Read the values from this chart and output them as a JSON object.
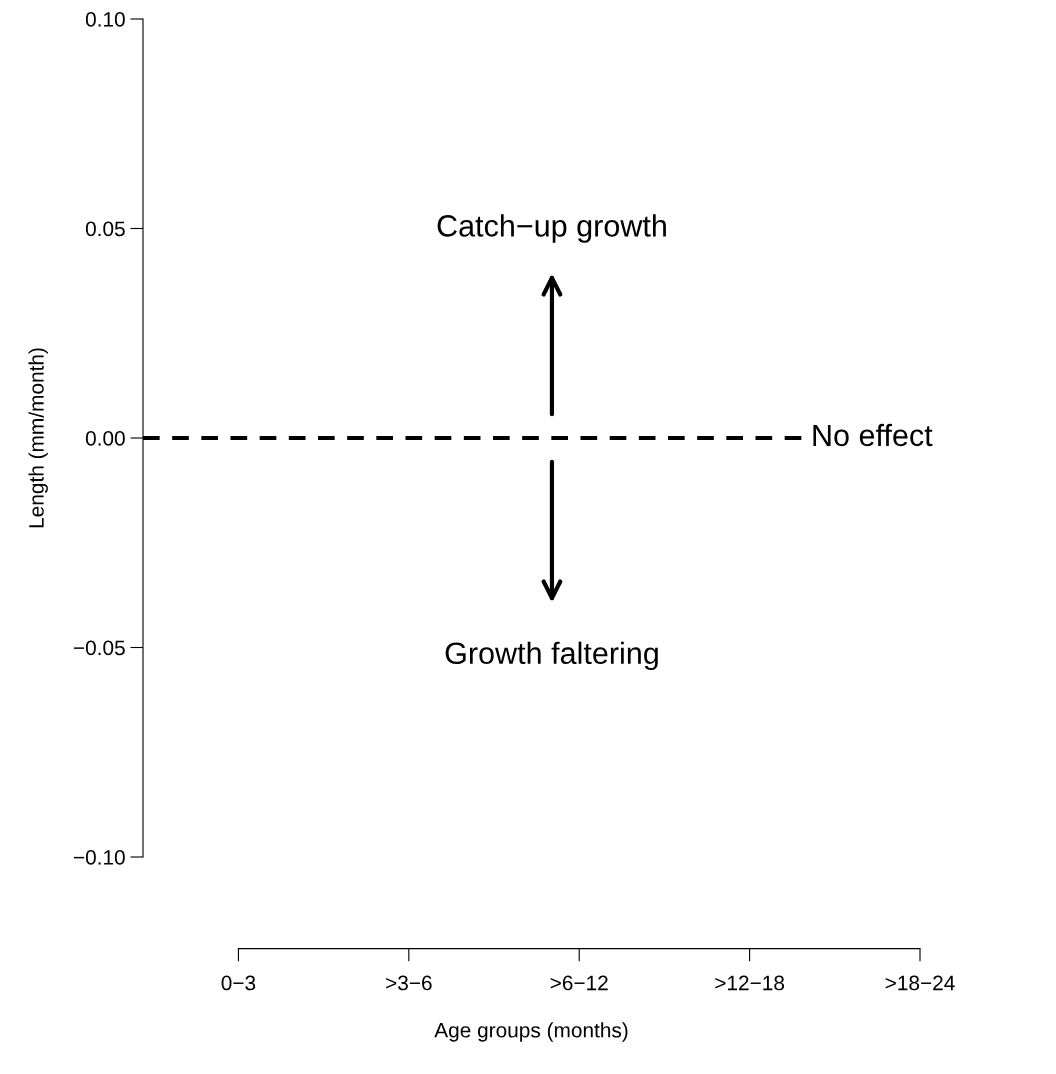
{
  "chart_data": {
    "type": "line",
    "values": [
      null,
      null,
      null,
      null,
      null
    ],
    "xlabel": "Age groups (months)",
    "ylabel": "Length (mm/month)",
    "categories": [
      "0−3",
      ">3−6",
      ">6−12",
      ">12−18",
      ">18−24"
    ],
    "ylim": [
      -0.1,
      0.1
    ],
    "yticks": [
      {
        "value": -0.1,
        "label": "−0.10"
      },
      {
        "value": -0.05,
        "label": "−0.05"
      },
      {
        "value": 0,
        "label": "0.00"
      },
      {
        "value": 0.05,
        "label": "0.05"
      },
      {
        "value": 0.1,
        "label": "0.10"
      }
    ],
    "ref_lines": [
      {
        "axis": "y",
        "value": 0,
        "label": "No effect",
        "color": "#000000",
        "line_style": "dashed"
      }
    ],
    "annotations": [
      "Catch−up growth",
      "Growth faltering"
    ]
  }
}
